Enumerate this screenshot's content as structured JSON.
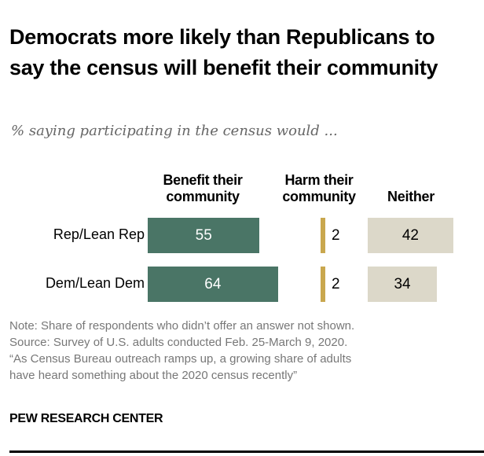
{
  "title": "Democrats more likely than Republicans to say the census will benefit their community",
  "subtitle": "% saying participating in the census would ...",
  "chart_data": {
    "type": "bar",
    "orientation": "horizontal",
    "categories": [
      "Rep/Lean Rep",
      "Dem/Lean Dem"
    ],
    "series": [
      {
        "name": "Benefit their community",
        "values": [
          55,
          64
        ],
        "color": "#4a7566"
      },
      {
        "name": "Harm their community",
        "values": [
          2,
          2
        ],
        "color": "#c9a74e"
      },
      {
        "name": "Neither",
        "values": [
          42,
          34
        ],
        "color": "#dcd8c9"
      }
    ],
    "grid": false,
    "legend": "column headers"
  },
  "notes": {
    "line1": "Note: Share of respondents who didn’t offer an answer not shown.",
    "line2": "Source: Survey of U.S. adults conducted Feb. 25-March 9, 2020.",
    "line3": "“As Census Bureau outreach ramps up, a growing share of adults",
    "line4": "have heard something about the 2020 census recently”"
  },
  "brand": "PEW RESEARCH CENTER"
}
